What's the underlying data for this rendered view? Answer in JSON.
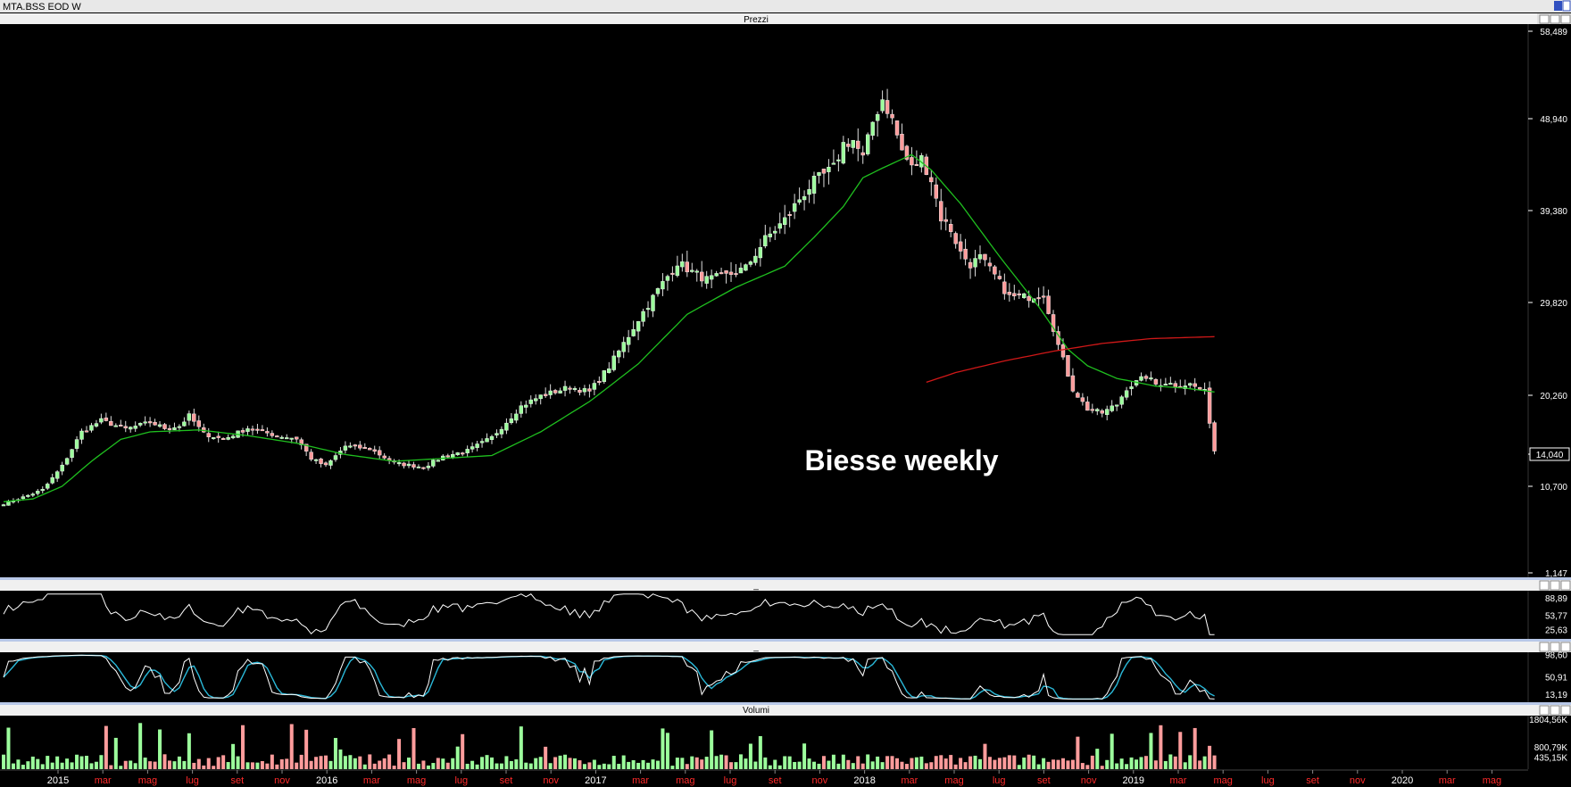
{
  "window": {
    "title": "MTA.BSS EOD W"
  },
  "panels": {
    "price_title": "Prezzi",
    "rsi_title": "_",
    "stoch_title": "_",
    "volume_title": "Volumi"
  },
  "annotation": "Biesse weekly",
  "colors": {
    "background": "#000000",
    "up_candle": "#9cff9c",
    "down_candle": "#ff9c9c",
    "ma_short": "#1fbf1f",
    "ma_long": "#d01818",
    "oscillator": "#ffffff",
    "stoch_k": "#ffffff",
    "stoch_d": "#2ab8d8",
    "separator": "#b8c8e8",
    "month_label": "#ff2a2a",
    "year_label": "#ffffff"
  },
  "axes": {
    "price_ticks": [
      "58,489",
      "48,940",
      "39,380",
      "29,820",
      "20,260",
      "14,040",
      "10,700",
      "1,147"
    ],
    "current_price": "14,040",
    "rsi_ticks": [
      "88,89",
      "53,77",
      "25,63"
    ],
    "stoch_ticks": [
      "98,60",
      "50,91",
      "13,19"
    ],
    "volume_ticks": [
      "1804,56K",
      "800,79K",
      "435,15K"
    ],
    "time_labels": [
      {
        "text": "2015",
        "year": true
      },
      {
        "text": "mar",
        "year": false
      },
      {
        "text": "mag",
        "year": false
      },
      {
        "text": "lug",
        "year": false
      },
      {
        "text": "set",
        "year": false
      },
      {
        "text": "nov",
        "year": false
      },
      {
        "text": "2016",
        "year": true
      },
      {
        "text": "mar",
        "year": false
      },
      {
        "text": "mag",
        "year": false
      },
      {
        "text": "lug",
        "year": false
      },
      {
        "text": "set",
        "year": false
      },
      {
        "text": "nov",
        "year": false
      },
      {
        "text": "2017",
        "year": true
      },
      {
        "text": "mar",
        "year": false
      },
      {
        "text": "mag",
        "year": false
      },
      {
        "text": "lug",
        "year": false
      },
      {
        "text": "set",
        "year": false
      },
      {
        "text": "nov",
        "year": false
      },
      {
        "text": "2018",
        "year": true
      },
      {
        "text": "mar",
        "year": false
      },
      {
        "text": "mag",
        "year": false
      },
      {
        "text": "lug",
        "year": false
      },
      {
        "text": "set",
        "year": false
      },
      {
        "text": "nov",
        "year": false
      },
      {
        "text": "2019",
        "year": true
      },
      {
        "text": "mar",
        "year": false
      },
      {
        "text": "mag",
        "year": false
      },
      {
        "text": "lug",
        "year": false
      },
      {
        "text": "set",
        "year": false
      },
      {
        "text": "nov",
        "year": false
      },
      {
        "text": "2020",
        "year": true
      },
      {
        "text": "mar",
        "year": false
      },
      {
        "text": "mag",
        "year": false
      }
    ]
  },
  "chart_data": {
    "type": "candlestick",
    "period": "weekly",
    "price_range": [
      1.147,
      58.489
    ],
    "close_anchors": [
      [
        0,
        8.8
      ],
      [
        4,
        9.5
      ],
      [
        8,
        10.3
      ],
      [
        12,
        12.8
      ],
      [
        16,
        16.4
      ],
      [
        20,
        17.6
      ],
      [
        25,
        16.7
      ],
      [
        30,
        17.4
      ],
      [
        33,
        16.8
      ],
      [
        36,
        17.0
      ],
      [
        38,
        18.1
      ],
      [
        41,
        16.2
      ],
      [
        45,
        15.6
      ],
      [
        50,
        16.8
      ],
      [
        56,
        16.0
      ],
      [
        60,
        15.7
      ],
      [
        63,
        13.6
      ],
      [
        66,
        12.8
      ],
      [
        70,
        14.9
      ],
      [
        75,
        14.6
      ],
      [
        80,
        13.1
      ],
      [
        86,
        12.7
      ],
      [
        90,
        13.8
      ],
      [
        95,
        14.4
      ],
      [
        100,
        15.8
      ],
      [
        106,
        19.1
      ],
      [
        110,
        20.2
      ],
      [
        116,
        21.1
      ],
      [
        120,
        20.6
      ],
      [
        124,
        23.2
      ],
      [
        128,
        26.4
      ],
      [
        130,
        28.1
      ],
      [
        134,
        31.1
      ],
      [
        138,
        34.0
      ],
      [
        141,
        33.0
      ],
      [
        144,
        32.2
      ],
      [
        148,
        32.6
      ],
      [
        152,
        33.4
      ],
      [
        156,
        36.4
      ],
      [
        160,
        38.4
      ],
      [
        163,
        40.6
      ],
      [
        166,
        42.4
      ],
      [
        170,
        43.8
      ],
      [
        172,
        46.3
      ],
      [
        174,
        46.7
      ],
      [
        176,
        44.8
      ],
      [
        178,
        48.6
      ],
      [
        180,
        51.1
      ],
      [
        182,
        48.8
      ],
      [
        184,
        45.6
      ],
      [
        186,
        43.8
      ],
      [
        188,
        44.8
      ],
      [
        190,
        42.6
      ],
      [
        192,
        38.6
      ],
      [
        194,
        37.4
      ],
      [
        196,
        35.0
      ],
      [
        198,
        33.8
      ],
      [
        200,
        34.5
      ],
      [
        203,
        32.6
      ],
      [
        206,
        30.4
      ],
      [
        210,
        30.4
      ],
      [
        213,
        30.8
      ],
      [
        216,
        25.4
      ],
      [
        219,
        20.9
      ],
      [
        222,
        18.8
      ],
      [
        225,
        18.4
      ],
      [
        228,
        19.3
      ],
      [
        230,
        21.0
      ],
      [
        232,
        21.6
      ],
      [
        234,
        22.2
      ],
      [
        236,
        21.4
      ],
      [
        238,
        21.6
      ],
      [
        240,
        21.3
      ],
      [
        243,
        21.4
      ],
      [
        246,
        20.6
      ],
      [
        248,
        14.4
      ]
    ],
    "ma_short_points": [
      [
        0,
        9.0
      ],
      [
        6,
        9.3
      ],
      [
        12,
        10.7
      ],
      [
        18,
        13.3
      ],
      [
        24,
        15.6
      ],
      [
        30,
        16.4
      ],
      [
        40,
        16.6
      ],
      [
        50,
        16.0
      ],
      [
        60,
        15.2
      ],
      [
        70,
        14.0
      ],
      [
        80,
        13.3
      ],
      [
        90,
        13.6
      ],
      [
        100,
        13.9
      ],
      [
        110,
        16.4
      ],
      [
        120,
        19.6
      ],
      [
        130,
        23.5
      ],
      [
        140,
        28.6
      ],
      [
        150,
        31.4
      ],
      [
        160,
        33.6
      ],
      [
        166,
        36.6
      ],
      [
        172,
        39.8
      ],
      [
        176,
        42.8
      ],
      [
        180,
        43.8
      ],
      [
        186,
        45.2
      ],
      [
        190,
        43.6
      ],
      [
        196,
        40.1
      ],
      [
        204,
        34.6
      ],
      [
        212,
        29.4
      ],
      [
        218,
        25.0
      ],
      [
        222,
        23.3
      ],
      [
        228,
        22.0
      ],
      [
        236,
        21.2
      ],
      [
        242,
        21.0
      ],
      [
        248,
        20.6
      ]
    ],
    "ma_long_points": [
      [
        189,
        21.6
      ],
      [
        195,
        22.6
      ],
      [
        205,
        23.8
      ],
      [
        215,
        24.8
      ],
      [
        225,
        25.6
      ],
      [
        235,
        26.1
      ],
      [
        248,
        26.3
      ]
    ],
    "rsi_range": [
      10,
      100
    ],
    "stoch_range": [
      0,
      100
    ],
    "volume_range": [
      0,
      1804.56
    ],
    "volume_unit": "K",
    "seed": 7
  }
}
